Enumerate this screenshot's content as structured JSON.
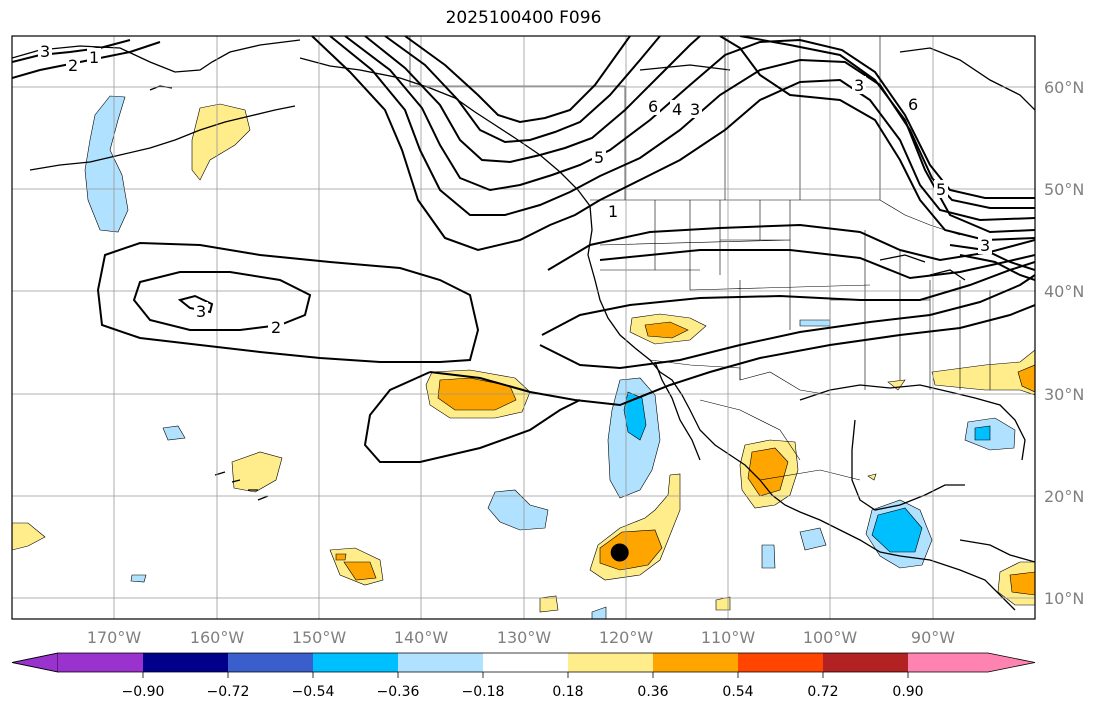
{
  "title": "2025100400 F096",
  "map": {
    "lon_range": [
      -180,
      -80
    ],
    "lat_range": [
      8,
      65
    ],
    "lat_labels": [
      "60°N",
      "50°N",
      "40°N",
      "30°N",
      "20°N",
      "10°N"
    ],
    "lon_labels": [
      "170°W",
      "160°W",
      "150°W",
      "140°W",
      "130°W",
      "120°W",
      "110°W",
      "100°W",
      "90°W"
    ],
    "contour_labels": [
      "2",
      "1",
      "3",
      "6",
      "4",
      "3",
      "5",
      "1",
      "3",
      "6",
      "3",
      "5",
      "3",
      "2"
    ],
    "marker": {
      "lon": -120.6,
      "lat": 14.5
    }
  },
  "colorbar": {
    "tick_labels": [
      "−0.90",
      "−0.72",
      "−0.54",
      "−0.36",
      "−0.18",
      "0.18",
      "0.36",
      "0.54",
      "0.72",
      "0.90"
    ],
    "colors": {
      "under": "#9a32cd",
      "bins": [
        "#00008b",
        "#3a5fcd",
        "#00bfff",
        "#b0e2ff",
        "#ffffff",
        "#ffec8b",
        "#ffa500",
        "#ff4500",
        "#b22222"
      ],
      "over": "#ff83b0"
    }
  }
}
